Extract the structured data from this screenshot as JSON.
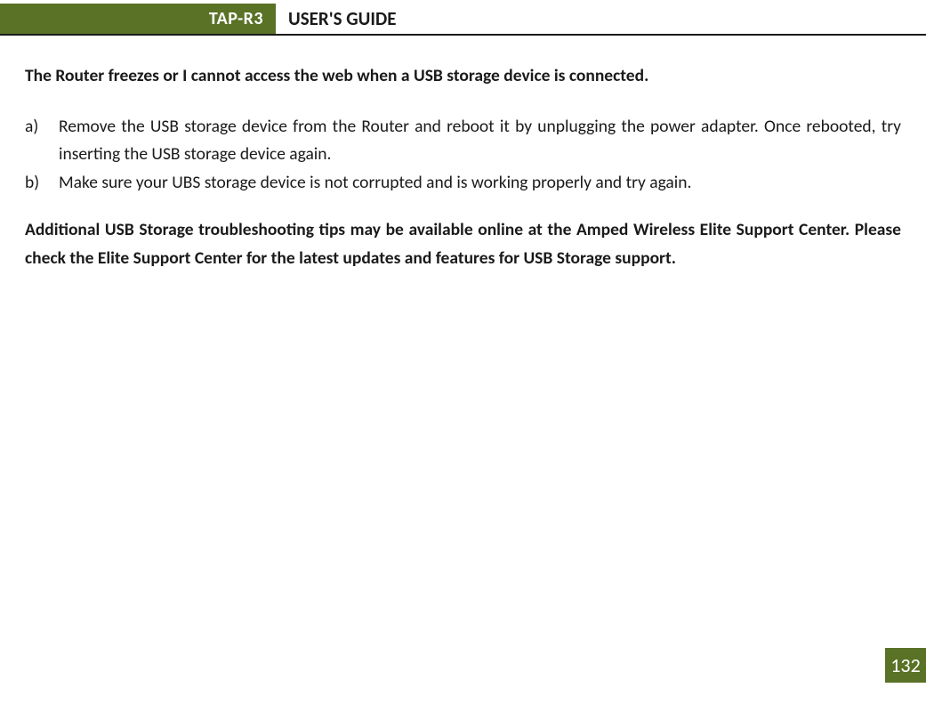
{
  "header": {
    "badge": "TAP-R3",
    "title": "USER'S GUIDE"
  },
  "colors": {
    "accent": "#597226",
    "text": "#1a1a1a",
    "background": "#ffffff",
    "badge_text": "#ffffff"
  },
  "typography": {
    "body_fontsize_pt": 15,
    "heading_fontsize_pt": 15,
    "header_badge_fontsize_pt": 15,
    "page_number_fontsize_pt": 17,
    "font_family": "Calibri"
  },
  "section": {
    "heading": "The Router freezes or I cannot access the web when a USB storage device is connected.",
    "items": [
      {
        "marker": "a)",
        "text": "Remove the USB storage device from the Router and reboot it by unplugging the power adapter.  Once rebooted, try inserting the USB storage device again."
      },
      {
        "marker": "b)",
        "text": "Make sure your UBS storage device is not corrupted and is working properly and try again."
      }
    ],
    "footer_note": "Additional USB Storage troubleshooting tips may be available online at the Amped Wireless Elite Support Center.  Please check the Elite Support Center for the latest updates and features for USB Storage support."
  },
  "page_number": "132"
}
